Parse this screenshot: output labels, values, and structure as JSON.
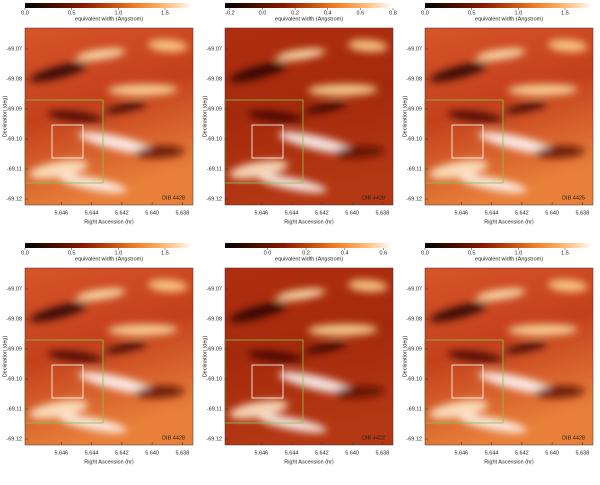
{
  "chart_data": [
    {
      "type": "heatmap",
      "annotation": "DIB 4428",
      "colorbar_label": "equivalent width (Angstrom)",
      "xlabel": "Right Ascension (hr)",
      "ylabel": "Declination (deg)",
      "xlim": [
        5.6484,
        5.6373
      ],
      "xticks": [
        5.646,
        5.644,
        5.642,
        {
          "value": 5.64,
          "label": "5.640"
        },
        5.638
      ],
      "ylim": [
        -69.122,
        -69.063
      ],
      "yticks": [
        -69.07,
        -69.08,
        -69.09,
        {
          "value": -69.1,
          "label": "-69.10"
        },
        -69.11,
        -69.12
      ],
      "clim": [
        0,
        1.8
      ],
      "cticks": [
        {
          "value": 0,
          "label": "0.0"
        },
        {
          "value": 0.5,
          "label": "0.5"
        },
        {
          "value": 1,
          "label": "1.0"
        },
        {
          "value": 1.5,
          "label": "1.5"
        }
      ]
    },
    {
      "type": "heatmap",
      "annotation": "DIB 4428",
      "colorbar_label": "equivalent width (Angstrom)",
      "xlabel": "Right Ascension (hr)",
      "ylabel": "Declination (deg)",
      "xlim": [
        5.6484,
        5.6373
      ],
      "xticks": [
        5.646,
        5.644,
        5.642,
        {
          "value": 5.64,
          "label": "5.640"
        },
        5.638
      ],
      "ylim": [
        -69.122,
        -69.063
      ],
      "yticks": [
        -69.07,
        -69.08,
        -69.09,
        {
          "value": -69.1,
          "label": "-69.10"
        },
        -69.11,
        -69.12
      ],
      "clim": [
        -0.23,
        0.8
      ],
      "cticks": [
        -0.2,
        {
          "value": 0,
          "label": "0.0"
        },
        0.2,
        0.4,
        0.6,
        0.8
      ]
    },
    {
      "type": "heatmap",
      "annotation": "DIB 4425",
      "colorbar_label": "equivalent width (Angstrom)",
      "xlabel": "Right Ascension (hr)",
      "ylabel": "Declination (deg)",
      "xlim": [
        5.6484,
        5.6373
      ],
      "xticks": [
        5.646,
        5.644,
        5.642,
        {
          "value": 5.64,
          "label": "5.640"
        },
        5.638
      ],
      "ylim": [
        -69.122,
        -69.063
      ],
      "yticks": [
        -69.07,
        -69.08,
        -69.09,
        {
          "value": -69.1,
          "label": "-69.10"
        },
        -69.11,
        -69.12
      ],
      "clim": [
        0,
        1.8
      ],
      "cticks": [
        {
          "value": 0,
          "label": "0.0"
        },
        {
          "value": 0.5,
          "label": "0.5"
        },
        {
          "value": 1,
          "label": "1.0"
        },
        {
          "value": 1.5,
          "label": "1.5"
        }
      ]
    },
    {
      "type": "heatmap",
      "annotation": "DIB 4428",
      "colorbar_label": "equivalent width (Angstrom)",
      "xlabel": "Right Ascension (hr)",
      "ylabel": "Declination (deg)",
      "xlim": [
        5.6484,
        5.6373
      ],
      "xticks": [
        5.646,
        5.644,
        5.642,
        {
          "value": 5.64,
          "label": "5.640"
        },
        5.638
      ],
      "ylim": [
        -69.122,
        -69.063
      ],
      "yticks": [
        -69.07,
        -69.08,
        -69.09,
        {
          "value": -69.1,
          "label": "-69.10"
        },
        -69.11,
        -69.12
      ],
      "clim": [
        0,
        1.8
      ],
      "cticks": [
        {
          "value": 0,
          "label": "0.0"
        },
        {
          "value": 0.5,
          "label": "0.5"
        },
        {
          "value": 1,
          "label": "1.0"
        },
        {
          "value": 1.5,
          "label": "1.5"
        }
      ]
    },
    {
      "type": "heatmap",
      "annotation": "DIB 4422",
      "colorbar_label": "equivalent width (Angstrom)",
      "xlabel": "Right Ascension (hr)",
      "ylabel": "Declination (deg)",
      "xlim": [
        5.6484,
        5.6373
      ],
      "xticks": [
        5.646,
        5.644,
        5.642,
        {
          "value": 5.64,
          "label": "5.640"
        },
        5.638
      ],
      "ylim": [
        -69.122,
        -69.063
      ],
      "yticks": [
        -69.07,
        -69.08,
        -69.09,
        {
          "value": -69.1,
          "label": "-69.10"
        },
        -69.11,
        -69.12
      ],
      "clim": [
        -0.22,
        0.65
      ],
      "cticks": [
        {
          "value": 0,
          "label": "0.0"
        },
        0.2,
        0.4,
        0.6
      ]
    },
    {
      "type": "heatmap",
      "annotation": "DIB 4428",
      "colorbar_label": "equivalent width (Angstrom)",
      "xlabel": "Right Ascension (hr)",
      "ylabel": "Declination (deg)",
      "xlim": [
        5.6484,
        5.6373
      ],
      "xticks": [
        5.646,
        5.644,
        5.642,
        {
          "value": 5.64,
          "label": "5.640"
        },
        5.638
      ],
      "ylim": [
        -69.122,
        -69.063
      ],
      "yticks": [
        -69.07,
        -69.08,
        -69.09,
        {
          "value": -69.1,
          "label": "-69.10"
        },
        -69.11,
        -69.12
      ],
      "clim": [
        0,
        1.8
      ],
      "cticks": [
        {
          "value": 0,
          "label": "0.0"
        },
        {
          "value": 0.5,
          "label": "0.5"
        },
        {
          "value": 1,
          "label": "1.0"
        },
        {
          "value": 1.5,
          "label": "1.5"
        }
      ]
    }
  ]
}
